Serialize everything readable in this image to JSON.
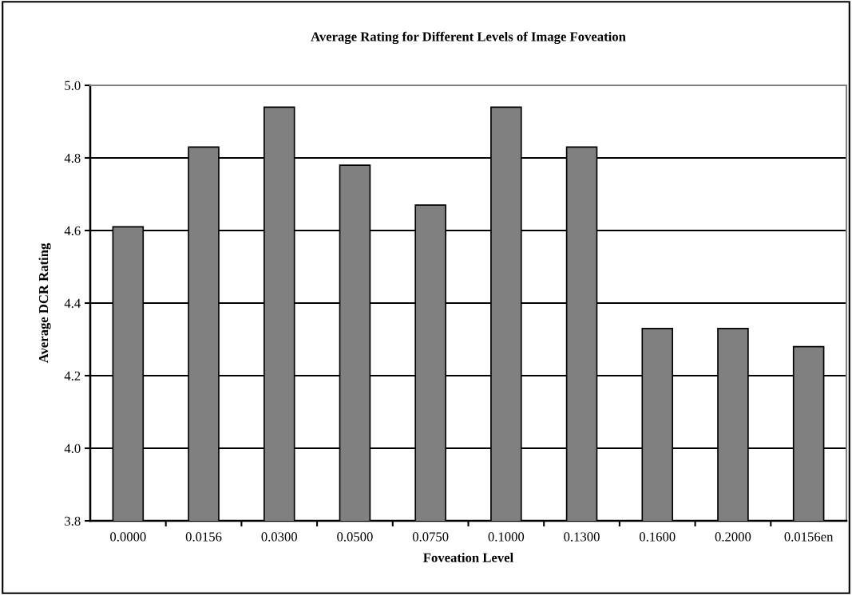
{
  "chart_data": {
    "type": "bar",
    "title": "Average Rating for Different Levels of Image Foveation",
    "xlabel": "Foveation Level",
    "ylabel": "Average DCR Rating",
    "categories": [
      "0.0000",
      "0.0156",
      "0.0300",
      "0.0500",
      "0.0750",
      "0.1000",
      "0.1300",
      "0.1600",
      "0.2000",
      "0.0156en"
    ],
    "values": [
      4.61,
      4.83,
      4.94,
      4.78,
      4.67,
      4.94,
      4.83,
      4.33,
      4.33,
      4.28
    ],
    "color": "#808080",
    "ylim": [
      3.8,
      5.0
    ],
    "yticks": [
      {
        "value": 3.8,
        "label": "3.8"
      },
      {
        "value": 4.0,
        "label": "4.0"
      },
      {
        "value": 4.2,
        "label": "4.2"
      },
      {
        "value": 4.4,
        "label": "4.4"
      },
      {
        "value": 4.6,
        "label": "4.6"
      },
      {
        "value": 4.8,
        "label": "4.8"
      },
      {
        "value": 5.0,
        "label": "5.0"
      }
    ],
    "grid": "y"
  }
}
